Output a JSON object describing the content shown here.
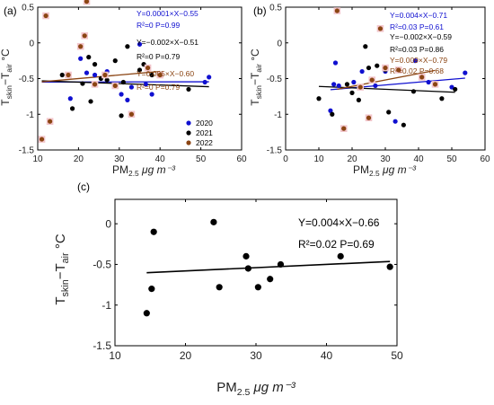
{
  "chart_data": [
    {
      "panel_label": "(a)",
      "type": "scatter",
      "xlabel": {
        "main": "PM",
        "sub": "2.5",
        "unit": "μg m⁻³"
      },
      "ylabel": {
        "a": "T",
        "a_sub": "skin",
        "mid": "−T",
        "b_sub": "air",
        "unit": "°C"
      },
      "xlim": [
        10,
        60
      ],
      "ylim": [
        -1.5,
        0.5
      ],
      "xticks": [
        "10",
        "20",
        "30",
        "40",
        "50",
        "60"
      ],
      "yticks": [
        "-1.5",
        "-1",
        "-0.5",
        "0",
        "0.5"
      ],
      "legend": [
        "2020",
        "2021",
        "2022"
      ],
      "series": [
        {
          "name": "2020",
          "color": "#1010d0",
          "x": [
            18,
            20.5,
            22,
            24,
            27,
            30.5,
            32,
            33,
            35,
            36.5,
            38,
            51,
            52
          ],
          "y": [
            -0.78,
            -0.22,
            -0.42,
            -0.45,
            -0.4,
            -0.72,
            -0.8,
            -0.62,
            -0.02,
            -0.58,
            -0.72,
            -0.55,
            -0.48
          ]
        },
        {
          "name": "2021",
          "color": "#000000",
          "x": [
            16,
            18.5,
            21,
            22.5,
            23,
            24,
            25.5,
            27,
            29,
            30.5,
            31,
            32,
            35,
            36,
            38,
            47
          ],
          "y": [
            -0.45,
            -0.92,
            -0.57,
            -0.2,
            -0.82,
            -0.3,
            -0.5,
            -0.52,
            -0.25,
            -1.02,
            -0.55,
            -0.05,
            -0.38,
            -0.3,
            -0.45,
            -0.65
          ]
        },
        {
          "name": "2022",
          "color": "#8b4513",
          "x": [
            11,
            12,
            13,
            17.5,
            20.5,
            21.5,
            22,
            24,
            26.5,
            29,
            33,
            37,
            40
          ],
          "y": [
            -1.35,
            0.38,
            -1.1,
            -0.45,
            -0.05,
            0.1,
            0.58,
            -0.58,
            -0.45,
            -0.6,
            -1.0,
            -0.35,
            -0.45
          ]
        }
      ],
      "fits": [
        {
          "color": "#1010d0",
          "x": [
            11,
            52
          ],
          "y": [
            -0.549,
            -0.545
          ]
        },
        {
          "color": "#000000",
          "x": [
            11,
            52
          ],
          "y": [
            -0.532,
            -0.614
          ]
        },
        {
          "color": "#8b4513",
          "x": [
            11,
            40
          ],
          "y": [
            -0.545,
            -0.4
          ]
        }
      ],
      "annotations": [
        {
          "text": "Y=0.0001×X−0.55",
          "color": "#1010d0"
        },
        {
          "text": "R²=0  P=0.99",
          "color": "#1010d0"
        },
        {
          "text": "Y=−0.002×X−0.51",
          "color": "#000000"
        },
        {
          "text": "R²=0  P=0.79",
          "color": "#000000"
        },
        {
          "text": "Y=0.005×X−0.60",
          "color": "#8b4513"
        },
        {
          "text": "R²=0  P=0.79",
          "color": "#8b4513"
        }
      ]
    },
    {
      "panel_label": "(b)",
      "type": "scatter",
      "xlabel": {
        "main": "PM",
        "sub": "2.5",
        "unit": "μg m⁻³"
      },
      "ylabel": {
        "a": "T",
        "a_sub": "skin",
        "mid": "−T",
        "b_sub": "air",
        "unit": "°C"
      },
      "xlim": [
        0,
        60
      ],
      "ylim": [
        -1.5,
        0.5
      ],
      "xticks": [
        "0",
        "10",
        "20",
        "30",
        "40",
        "50",
        "60"
      ],
      "yticks": [
        "-1.5",
        "-1",
        "-0.5",
        "0",
        "0.5"
      ],
      "series": [
        {
          "name": "2020",
          "color": "#1010d0",
          "x": [
            13.5,
            14.5,
            15,
            16,
            20.5,
            23,
            27,
            30,
            33,
            39,
            43,
            50,
            54
          ],
          "y": [
            -0.95,
            -0.58,
            -0.28,
            -0.6,
            -0.55,
            -0.4,
            -0.6,
            -0.4,
            -1.1,
            -0.25,
            -0.55,
            -0.62,
            -0.42
          ]
        },
        {
          "name": "2021",
          "color": "#000000",
          "x": [
            10,
            14,
            18.5,
            20,
            22,
            24,
            25,
            27.5,
            30,
            31,
            35.5,
            38.5,
            47,
            51
          ],
          "y": [
            -0.78,
            -1.0,
            -0.58,
            -0.7,
            -0.8,
            -0.05,
            -0.35,
            -0.32,
            -0.38,
            -0.97,
            -1.15,
            -0.68,
            -0.78,
            -0.65
          ]
        },
        {
          "name": "2022",
          "color": "#8b4513",
          "x": [
            15.5,
            17.5,
            22.5,
            25,
            26,
            28.5,
            30,
            34,
            41,
            45
          ],
          "y": [
            0.45,
            -1.2,
            -0.62,
            -1.05,
            -0.52,
            0.2,
            -0.35,
            -0.38,
            -0.48,
            -0.58
          ]
        }
      ],
      "fits": [
        {
          "color": "#1010d0",
          "x": [
            13.5,
            54
          ],
          "y": [
            -0.656,
            -0.494
          ]
        },
        {
          "color": "#000000",
          "x": [
            10,
            51
          ],
          "y": [
            -0.61,
            -0.692
          ]
        },
        {
          "color": "#8b4513",
          "x": [
            15.5,
            45
          ],
          "y": [
            -0.65,
            -0.385
          ]
        }
      ],
      "annotations": [
        {
          "text": "Y=0.004×X−0.71",
          "color": "#1010d0"
        },
        {
          "text": "R²=0.03  P=0.61",
          "color": "#1010d0"
        },
        {
          "text": "Y=−0.002×X−0.59",
          "color": "#000000"
        },
        {
          "text": "R²=0.03  P=0.86",
          "color": "#000000"
        },
        {
          "text": "Y=0.009×X−0.79",
          "color": "#8b4513"
        },
        {
          "text": "R²=0.02  P=0.68",
          "color": "#8b4513"
        }
      ]
    },
    {
      "panel_label": "(c)",
      "type": "scatter",
      "xlabel": {
        "main": "PM",
        "sub": "2.5",
        "unit": "μg m⁻³"
      },
      "ylabel": {
        "a": "T",
        "a_sub": "skin",
        "mid": "−T",
        "b_sub": "air",
        "unit": "°C"
      },
      "xlim": [
        10,
        50
      ],
      "ylim": [
        -1.5,
        0.3
      ],
      "xticks": [
        "10",
        "20",
        "30",
        "40",
        "50"
      ],
      "yticks": [
        "-1.5",
        "-1",
        "-0.5",
        "0"
      ],
      "series": [
        {
          "name": "",
          "color": "#000000",
          "x": [
            14.5,
            15.2,
            15.5,
            24,
            24.8,
            28.6,
            28.9,
            30.3,
            32,
            33.5,
            42,
            49
          ],
          "y": [
            -1.1,
            -0.8,
            -0.1,
            0.02,
            -0.78,
            -0.4,
            -0.55,
            -0.78,
            -0.68,
            -0.5,
            -0.4,
            -0.53
          ]
        }
      ],
      "fits": [
        {
          "color": "#000000",
          "x": [
            14.5,
            49
          ],
          "y": [
            -0.602,
            -0.464
          ]
        }
      ],
      "annotations": [
        {
          "text": "Y=0.004×X−0.66",
          "color": "#000000"
        },
        {
          "text": "R²=0.02  P=0.69",
          "color": "#000000"
        }
      ]
    }
  ]
}
